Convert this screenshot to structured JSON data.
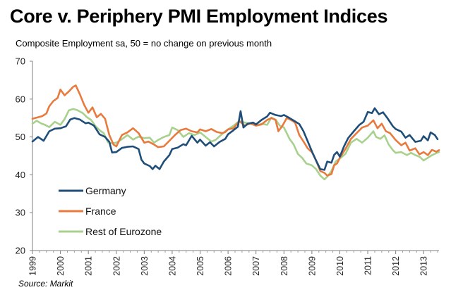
{
  "chart_data": {
    "type": "line",
    "title": "Core v. Periphery PMI Employment Indices",
    "subtitle": "Composite Employment sa, 50 = no change on previous month",
    "source": "Source: Markit",
    "xlabel": "",
    "ylabel": "",
    "xlim": [
      1999.0,
      2013.55
    ],
    "ylim": [
      20,
      70
    ],
    "y_ticks": [
      "20",
      "30",
      "40",
      "50",
      "60",
      "70"
    ],
    "x_ticks": [
      "1999",
      "2000",
      "2001",
      "2002",
      "2003",
      "2004",
      "2005",
      "2006",
      "2007",
      "2008",
      "2009",
      "2010",
      "2011",
      "2012",
      "2013"
    ],
    "grid": false,
    "legend_position": "bottom-left",
    "series": [
      {
        "name": "Germany",
        "color": "#1f4e79",
        "points": [
          [
            1999.0,
            48.8
          ],
          [
            1999.2,
            50.0
          ],
          [
            1999.4,
            49.0
          ],
          [
            1999.6,
            51.5
          ],
          [
            1999.8,
            52.2
          ],
          [
            2000.0,
            52.3
          ],
          [
            2000.2,
            52.8
          ],
          [
            2000.35,
            54.6
          ],
          [
            2000.5,
            55.0
          ],
          [
            2000.7,
            54.6
          ],
          [
            2000.9,
            53.6
          ],
          [
            2001.0,
            53.8
          ],
          [
            2001.2,
            53.0
          ],
          [
            2001.4,
            50.7
          ],
          [
            2001.6,
            50.0
          ],
          [
            2001.75,
            48.7
          ],
          [
            2001.85,
            45.9
          ],
          [
            2002.0,
            46.0
          ],
          [
            2002.2,
            47.1
          ],
          [
            2002.4,
            47.4
          ],
          [
            2002.6,
            47.5
          ],
          [
            2002.8,
            46.8
          ],
          [
            2002.9,
            44.0
          ],
          [
            2003.0,
            43.0
          ],
          [
            2003.2,
            42.3
          ],
          [
            2003.3,
            41.5
          ],
          [
            2003.4,
            42.4
          ],
          [
            2003.55,
            41.5
          ],
          [
            2003.7,
            43.5
          ],
          [
            2003.9,
            45.2
          ],
          [
            2004.0,
            46.8
          ],
          [
            2004.2,
            47.2
          ],
          [
            2004.4,
            48.1
          ],
          [
            2004.5,
            47.8
          ],
          [
            2004.7,
            50.3
          ],
          [
            2004.9,
            48.5
          ],
          [
            2005.0,
            49.3
          ],
          [
            2005.2,
            47.7
          ],
          [
            2005.35,
            48.6
          ],
          [
            2005.5,
            47.5
          ],
          [
            2005.7,
            48.7
          ],
          [
            2005.9,
            49.5
          ],
          [
            2006.0,
            50.7
          ],
          [
            2006.2,
            51.8
          ],
          [
            2006.35,
            52.7
          ],
          [
            2006.45,
            56.8
          ],
          [
            2006.55,
            52.5
          ],
          [
            2006.7,
            53.5
          ],
          [
            2006.9,
            53.8
          ],
          [
            2007.0,
            53.3
          ],
          [
            2007.2,
            54.5
          ],
          [
            2007.4,
            55.4
          ],
          [
            2007.5,
            56.4
          ],
          [
            2007.7,
            55.8
          ],
          [
            2007.9,
            55.5
          ],
          [
            2008.0,
            55.8
          ],
          [
            2008.2,
            55.0
          ],
          [
            2008.4,
            54.1
          ],
          [
            2008.55,
            53.4
          ],
          [
            2008.7,
            51.5
          ],
          [
            2008.9,
            48.0
          ],
          [
            2009.0,
            46.2
          ],
          [
            2009.15,
            43.8
          ],
          [
            2009.3,
            41.5
          ],
          [
            2009.45,
            41.3
          ],
          [
            2009.55,
            43.5
          ],
          [
            2009.7,
            43.2
          ],
          [
            2009.8,
            45.3
          ],
          [
            2009.9,
            46.0
          ],
          [
            2010.0,
            44.8
          ],
          [
            2010.15,
            47.5
          ],
          [
            2010.3,
            49.7
          ],
          [
            2010.5,
            51.5
          ],
          [
            2010.7,
            53.2
          ],
          [
            2010.85,
            54.0
          ],
          [
            2011.0,
            56.6
          ],
          [
            2011.15,
            56.3
          ],
          [
            2011.25,
            57.6
          ],
          [
            2011.4,
            56.0
          ],
          [
            2011.55,
            56.5
          ],
          [
            2011.7,
            55.0
          ],
          [
            2011.9,
            52.8
          ],
          [
            2012.0,
            52.1
          ],
          [
            2012.2,
            51.4
          ],
          [
            2012.35,
            49.8
          ],
          [
            2012.5,
            50.5
          ],
          [
            2012.7,
            48.7
          ],
          [
            2012.9,
            49.0
          ],
          [
            2013.0,
            50.2
          ],
          [
            2013.15,
            49.1
          ],
          [
            2013.25,
            51.2
          ],
          [
            2013.4,
            50.5
          ],
          [
            2013.5,
            49.4
          ]
        ]
      },
      {
        "name": "France",
        "color": "#e87a3e",
        "points": [
          [
            1999.0,
            54.8
          ],
          [
            1999.2,
            55.2
          ],
          [
            1999.35,
            55.5
          ],
          [
            1999.5,
            56.2
          ],
          [
            1999.6,
            58.1
          ],
          [
            1999.75,
            59.5
          ],
          [
            1999.9,
            60.3
          ],
          [
            2000.0,
            62.5
          ],
          [
            2000.15,
            61.0
          ],
          [
            2000.3,
            62.0
          ],
          [
            2000.45,
            63.2
          ],
          [
            2000.55,
            63.6
          ],
          [
            2000.7,
            61.2
          ],
          [
            2000.85,
            58.5
          ],
          [
            2001.0,
            56.4
          ],
          [
            2001.15,
            57.8
          ],
          [
            2001.3,
            55.2
          ],
          [
            2001.45,
            56.1
          ],
          [
            2001.6,
            54.8
          ],
          [
            2001.75,
            50.5
          ],
          [
            2001.9,
            48.0
          ],
          [
            2002.0,
            47.5
          ],
          [
            2002.2,
            50.5
          ],
          [
            2002.4,
            51.2
          ],
          [
            2002.6,
            52.3
          ],
          [
            2002.8,
            51.0
          ],
          [
            2003.0,
            48.5
          ],
          [
            2003.15,
            48.8
          ],
          [
            2003.35,
            48.0
          ],
          [
            2003.5,
            47.3
          ],
          [
            2003.7,
            47.5
          ],
          [
            2003.9,
            49.0
          ],
          [
            2004.1,
            50.5
          ],
          [
            2004.3,
            51.8
          ],
          [
            2004.5,
            52.2
          ],
          [
            2004.7,
            51.5
          ],
          [
            2004.9,
            51.2
          ],
          [
            2005.0,
            52.0
          ],
          [
            2005.2,
            51.5
          ],
          [
            2005.4,
            52.1
          ],
          [
            2005.6,
            51.3
          ],
          [
            2005.8,
            51.0
          ],
          [
            2005.9,
            51.3
          ],
          [
            2006.0,
            52.0
          ],
          [
            2006.2,
            52.3
          ],
          [
            2006.4,
            54.2
          ],
          [
            2006.6,
            53.0
          ],
          [
            2006.8,
            53.6
          ],
          [
            2007.0,
            53.0
          ],
          [
            2007.2,
            53.3
          ],
          [
            2007.4,
            54.5
          ],
          [
            2007.55,
            55.0
          ],
          [
            2007.7,
            54.5
          ],
          [
            2007.8,
            51.5
          ],
          [
            2007.95,
            53.0
          ],
          [
            2008.1,
            55.0
          ],
          [
            2008.25,
            54.5
          ],
          [
            2008.4,
            53.8
          ],
          [
            2008.55,
            50.5
          ],
          [
            2008.7,
            48.8
          ],
          [
            2008.85,
            47.0
          ],
          [
            2009.0,
            46.0
          ],
          [
            2009.15,
            43.8
          ],
          [
            2009.3,
            41.0
          ],
          [
            2009.45,
            40.5
          ],
          [
            2009.55,
            39.8
          ],
          [
            2009.7,
            40.2
          ],
          [
            2009.8,
            42.5
          ],
          [
            2009.9,
            43.0
          ],
          [
            2010.0,
            44.5
          ],
          [
            2010.2,
            46.8
          ],
          [
            2010.4,
            49.5
          ],
          [
            2010.6,
            51.0
          ],
          [
            2010.8,
            52.5
          ],
          [
            2011.0,
            53.0
          ],
          [
            2011.2,
            54.4
          ],
          [
            2011.35,
            52.3
          ],
          [
            2011.5,
            53.5
          ],
          [
            2011.65,
            51.5
          ],
          [
            2011.8,
            51.0
          ],
          [
            2012.0,
            49.2
          ],
          [
            2012.2,
            47.8
          ],
          [
            2012.35,
            48.5
          ],
          [
            2012.5,
            46.4
          ],
          [
            2012.7,
            47.0
          ],
          [
            2012.85,
            45.4
          ],
          [
            2013.0,
            46.0
          ],
          [
            2013.15,
            45.2
          ],
          [
            2013.3,
            46.6
          ],
          [
            2013.45,
            46.1
          ],
          [
            2013.55,
            46.5
          ]
        ]
      },
      {
        "name": "Rest of Eurozone",
        "color": "#a9d18e",
        "points": [
          [
            1999.0,
            53.5
          ],
          [
            1999.15,
            54.3
          ],
          [
            1999.3,
            53.6
          ],
          [
            1999.45,
            53.2
          ],
          [
            1999.6,
            52.6
          ],
          [
            1999.8,
            54.0
          ],
          [
            2000.0,
            53.2
          ],
          [
            2000.15,
            54.7
          ],
          [
            2000.3,
            57.0
          ],
          [
            2000.45,
            57.4
          ],
          [
            2000.6,
            57.1
          ],
          [
            2000.8,
            56.3
          ],
          [
            2000.95,
            55.2
          ],
          [
            2001.1,
            54.5
          ],
          [
            2001.25,
            52.9
          ],
          [
            2001.4,
            51.8
          ],
          [
            2001.55,
            51.0
          ],
          [
            2001.7,
            48.6
          ],
          [
            2001.85,
            48.3
          ],
          [
            2002.0,
            48.5
          ],
          [
            2002.2,
            49.4
          ],
          [
            2002.4,
            50.5
          ],
          [
            2002.6,
            49.3
          ],
          [
            2002.8,
            50.1
          ],
          [
            2003.0,
            49.7
          ],
          [
            2003.2,
            49.8
          ],
          [
            2003.35,
            48.5
          ],
          [
            2003.5,
            49.2
          ],
          [
            2003.7,
            50.0
          ],
          [
            2003.9,
            50.5
          ],
          [
            2004.0,
            52.5
          ],
          [
            2004.2,
            51.8
          ],
          [
            2004.4,
            50.0
          ],
          [
            2004.6,
            51.0
          ],
          [
            2004.8,
            50.5
          ],
          [
            2005.0,
            51.2
          ],
          [
            2005.2,
            50.0
          ],
          [
            2005.4,
            48.8
          ],
          [
            2005.55,
            49.2
          ],
          [
            2005.7,
            50.2
          ],
          [
            2005.9,
            51.5
          ],
          [
            2006.0,
            52.0
          ],
          [
            2006.2,
            53.0
          ],
          [
            2006.4,
            54.2
          ],
          [
            2006.6,
            53.8
          ],
          [
            2006.8,
            53.5
          ],
          [
            2007.0,
            53.0
          ],
          [
            2007.2,
            53.5
          ],
          [
            2007.4,
            53.2
          ],
          [
            2007.55,
            55.1
          ],
          [
            2007.7,
            54.6
          ],
          [
            2007.85,
            53.0
          ],
          [
            2008.0,
            52.5
          ],
          [
            2008.2,
            49.5
          ],
          [
            2008.35,
            48.0
          ],
          [
            2008.5,
            45.5
          ],
          [
            2008.65,
            44.5
          ],
          [
            2008.8,
            43.0
          ],
          [
            2009.0,
            42.5
          ],
          [
            2009.15,
            41.5
          ],
          [
            2009.3,
            39.8
          ],
          [
            2009.45,
            38.8
          ],
          [
            2009.55,
            39.5
          ],
          [
            2009.7,
            41.0
          ],
          [
            2009.85,
            43.5
          ],
          [
            2010.0,
            44.3
          ],
          [
            2010.2,
            45.5
          ],
          [
            2010.4,
            48.5
          ],
          [
            2010.6,
            49.5
          ],
          [
            2010.8,
            48.5
          ],
          [
            2011.0,
            49.8
          ],
          [
            2011.2,
            51.5
          ],
          [
            2011.3,
            50.0
          ],
          [
            2011.45,
            49.5
          ],
          [
            2011.6,
            50.4
          ],
          [
            2011.75,
            48.0
          ],
          [
            2011.9,
            46.5
          ],
          [
            2012.0,
            45.8
          ],
          [
            2012.2,
            46.0
          ],
          [
            2012.4,
            45.2
          ],
          [
            2012.55,
            45.8
          ],
          [
            2012.7,
            45.2
          ],
          [
            2012.85,
            44.8
          ],
          [
            2013.0,
            43.8
          ],
          [
            2013.15,
            44.5
          ],
          [
            2013.3,
            45.2
          ],
          [
            2013.45,
            45.7
          ],
          [
            2013.55,
            46.0
          ]
        ]
      }
    ]
  }
}
